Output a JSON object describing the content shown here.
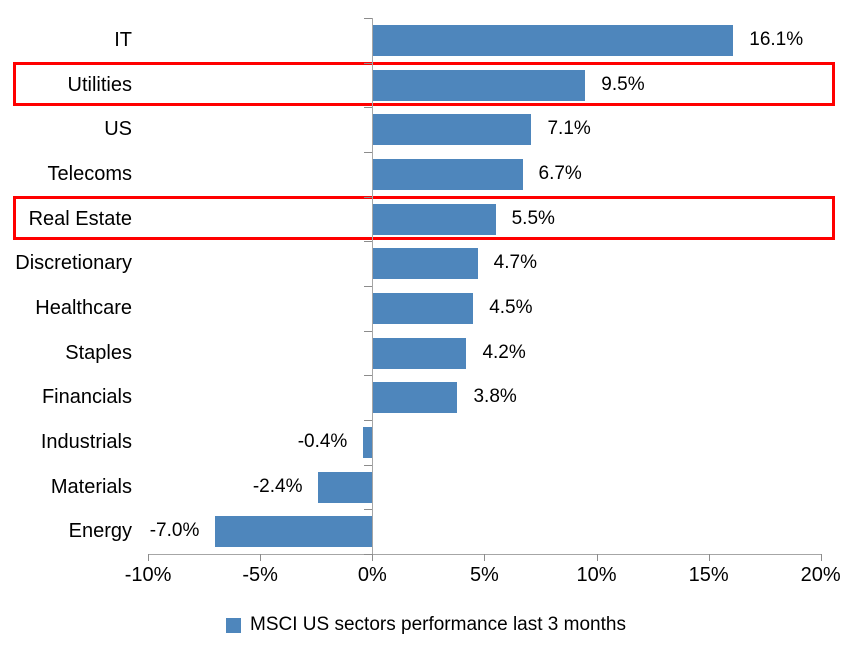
{
  "chart_data": {
    "type": "bar",
    "orientation": "horizontal",
    "title": "",
    "categories": [
      "IT",
      "Utilities",
      "US",
      "Telecoms",
      "Real Estate",
      "Discretionary",
      "Healthcare",
      "Staples",
      "Financials",
      "Industrials",
      "Materials",
      "Energy"
    ],
    "values": [
      16.1,
      9.5,
      7.1,
      6.7,
      5.5,
      4.7,
      4.5,
      4.2,
      3.8,
      -0.4,
      -2.4,
      -7.0
    ],
    "value_labels": [
      "16.1%",
      "9.5%",
      "7.1%",
      "6.7%",
      "5.5%",
      "4.7%",
      "4.5%",
      "4.2%",
      "3.8%",
      "-0.4%",
      "-2.4%",
      "-7.0%"
    ],
    "highlighted_categories": [
      "Utilities",
      "Real Estate"
    ],
    "x_axis": {
      "range": [
        -10,
        20
      ],
      "tick_values": [
        -10,
        -5,
        0,
        5,
        10,
        15,
        20
      ],
      "tick_labels": [
        "-10%",
        "-5%",
        "0%",
        "5%",
        "10%",
        "15%",
        "20%"
      ]
    },
    "legend": {
      "label": "MSCI US sectors performance last 3 months",
      "position": "bottom"
    },
    "grid": "off",
    "colors": {
      "bar": "#4E86BC",
      "highlight_border": "#FF0000",
      "axis": "#A6A6A6",
      "text": "#000000"
    }
  }
}
